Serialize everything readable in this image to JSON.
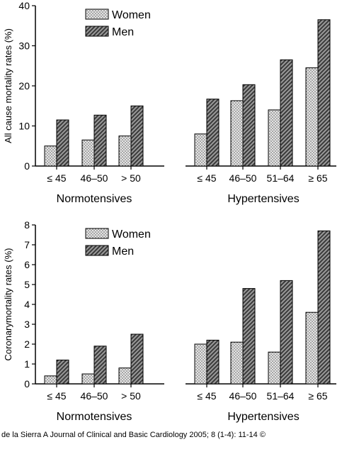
{
  "chart_data": [
    {
      "type": "bar",
      "ylabel": "All cause mortality rates (%)",
      "ylim": [
        0,
        40
      ],
      "yticks": [
        0,
        10,
        20,
        30,
        40
      ],
      "legend": [
        "Women",
        "Men"
      ],
      "legend_position": "top-left",
      "groups": [
        {
          "label": "Normotensives",
          "categories": [
            "≤ 45",
            "46–50",
            "> 50"
          ]
        },
        {
          "label": "Hypertensives",
          "categories": [
            "≤ 45",
            "46–50",
            "51–64",
            "≥ 65"
          ]
        }
      ],
      "series": [
        {
          "name": "Women",
          "values": [
            5.0,
            6.5,
            7.5,
            8.0,
            16.3,
            14.0,
            24.5
          ]
        },
        {
          "name": "Men",
          "values": [
            11.5,
            12.7,
            15.0,
            16.7,
            20.3,
            26.5,
            36.5
          ]
        }
      ]
    },
    {
      "type": "bar",
      "ylabel": "Coronarymortality rates (%)",
      "ylim": [
        0,
        8
      ],
      "yticks": [
        0,
        1,
        2,
        3,
        4,
        5,
        6,
        7,
        8
      ],
      "legend": [
        "Women",
        "Men"
      ],
      "legend_position": "top-left",
      "groups": [
        {
          "label": "Normotensives",
          "categories": [
            "≤ 45",
            "46–50",
            "> 50"
          ]
        },
        {
          "label": "Hypertensives",
          "categories": [
            "≤ 45",
            "46–50",
            "51–64",
            "≥ 65"
          ]
        }
      ],
      "series": [
        {
          "name": "Women",
          "values": [
            0.4,
            0.5,
            0.8,
            2.0,
            2.1,
            1.6,
            3.6
          ]
        },
        {
          "name": "Men",
          "values": [
            1.2,
            1.9,
            2.5,
            2.2,
            4.8,
            5.2,
            7.7
          ]
        }
      ]
    }
  ],
  "footer": {
    "citation": "de la Sierra A Journal of Clinical and Basic Cardiology 2005; 8 (1-4): 11-14 ©"
  }
}
